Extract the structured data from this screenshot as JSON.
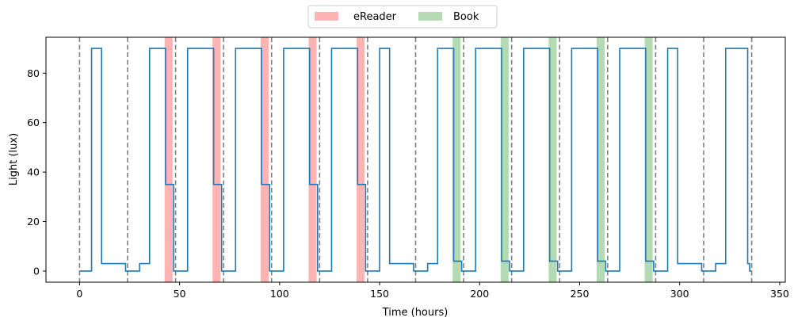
{
  "chart_data": {
    "type": "line",
    "xlabel": "Time (hours)",
    "ylabel": "Light (lux)",
    "xlim": [
      -16.8,
      352.8
    ],
    "ylim": [
      -4.5,
      94.5
    ],
    "xticks": [
      0,
      50,
      100,
      150,
      200,
      250,
      300,
      350
    ],
    "yticks": [
      0,
      20,
      40,
      60,
      80
    ],
    "grid": false,
    "legend": {
      "placement": "top-center",
      "entries": [
        {
          "label": "eReader",
          "color": "#ffb3b3"
        },
        {
          "label": "Book",
          "color": "#b3dab3"
        }
      ]
    },
    "series": [
      {
        "color": "#1f77b4",
        "step": true,
        "x": [
          0,
          6,
          11,
          12,
          22,
          23,
          24,
          30,
          35,
          36,
          42,
          43,
          46,
          47,
          48,
          54,
          59,
          60,
          66,
          67,
          70,
          71,
          72,
          78,
          83,
          84,
          90,
          91,
          94,
          95,
          96,
          102,
          107,
          108,
          114,
          115,
          118,
          119,
          120,
          126,
          131,
          132,
          138,
          139,
          142,
          143,
          144,
          150,
          155,
          156,
          166,
          167,
          168,
          174,
          179,
          180,
          186,
          187,
          190,
          191,
          192,
          198,
          203,
          204,
          210,
          211,
          214,
          215,
          216,
          222,
          227,
          228,
          234,
          235,
          238,
          239,
          240,
          246,
          251,
          252,
          258,
          259,
          262,
          263,
          264,
          270,
          275,
          276,
          282,
          283,
          286,
          287,
          288,
          294,
          299,
          300,
          310,
          311,
          312,
          318,
          323,
          324,
          334,
          335,
          336
        ],
        "y": [
          0,
          90,
          3,
          3,
          3,
          0,
          0,
          3,
          90,
          90,
          90,
          35,
          35,
          0,
          0,
          90,
          90,
          90,
          90,
          35,
          35,
          0,
          0,
          90,
          90,
          90,
          90,
          35,
          35,
          0,
          0,
          90,
          90,
          90,
          90,
          35,
          35,
          0,
          0,
          90,
          90,
          90,
          90,
          35,
          35,
          0,
          0,
          90,
          3,
          3,
          3,
          0,
          0,
          3,
          90,
          90,
          90,
          4,
          4,
          0,
          0,
          90,
          90,
          90,
          90,
          4,
          4,
          0,
          0,
          90,
          90,
          90,
          90,
          4,
          4,
          0,
          0,
          90,
          90,
          90,
          90,
          4,
          4,
          0,
          0,
          90,
          90,
          90,
          90,
          4,
          4,
          0,
          0,
          90,
          3,
          3,
          3,
          0,
          0,
          3,
          90,
          90,
          3,
          0,
          0
        ]
      }
    ],
    "ereader_spans": [
      [
        42.5,
        46.5
      ],
      [
        66.5,
        70.5
      ],
      [
        90.5,
        94.5
      ],
      [
        114.5,
        118.5
      ],
      [
        138.5,
        142.5
      ]
    ],
    "book_spans": [
      [
        186.5,
        190.5
      ],
      [
        210.5,
        214.5
      ],
      [
        234.5,
        238.5
      ],
      [
        258.5,
        262.5
      ],
      [
        282.5,
        286.5
      ]
    ],
    "day_boundaries": [
      0,
      24,
      48,
      72,
      96,
      120,
      144,
      168,
      192,
      216,
      240,
      264,
      288,
      312,
      336
    ]
  }
}
